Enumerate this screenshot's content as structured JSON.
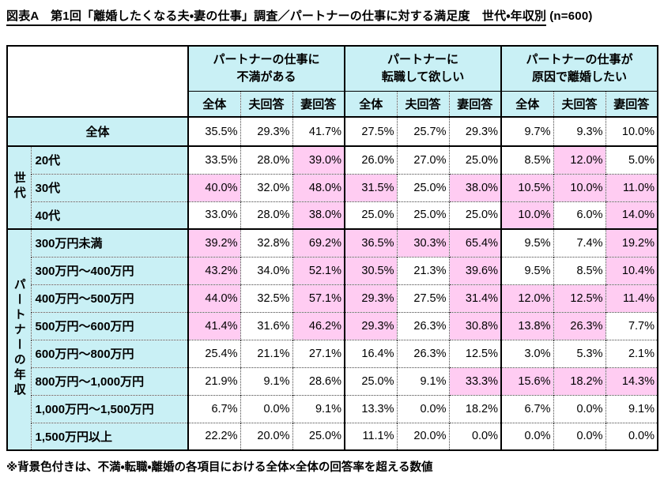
{
  "title": {
    "main": "図表A　第1回「離婚したくなる夫・妻の仕事」調査／パートナーの仕事に対する満足度　世代・年収別",
    "suffix": "(n=600)"
  },
  "colors": {
    "header_bg": "#C9F0F5",
    "highlight_bg": "#FFCCF2",
    "grid": "#000000"
  },
  "table": {
    "groups": [
      {
        "line1": "パートナーの仕事に",
        "line2": "不満がある"
      },
      {
        "line1": "パートナーに",
        "line2": "転職して欲しい"
      },
      {
        "line1": "パートナーの仕事が",
        "line2": "原因で離婚したい"
      }
    ],
    "subheaders": [
      "全体",
      "夫回答",
      "妻回答"
    ],
    "total_row": {
      "label": "全体",
      "values": [
        "35.5%",
        "29.3%",
        "41.7%",
        "27.5%",
        "25.7%",
        "29.3%",
        "9.7%",
        "9.3%",
        "10.0%"
      ],
      "highlights": [
        0,
        0,
        0,
        0,
        0,
        0,
        0,
        0,
        0
      ]
    },
    "sections": [
      {
        "header": "世代",
        "rows": [
          {
            "label": "20代",
            "values": [
              "33.5%",
              "28.0%",
              "39.0%",
              "26.0%",
              "27.0%",
              "25.0%",
              "8.5%",
              "12.0%",
              "5.0%"
            ],
            "highlights": [
              0,
              0,
              1,
              0,
              0,
              0,
              0,
              1,
              0
            ]
          },
          {
            "label": "30代",
            "values": [
              "40.0%",
              "32.0%",
              "48.0%",
              "31.5%",
              "25.0%",
              "38.0%",
              "10.5%",
              "10.0%",
              "11.0%"
            ],
            "highlights": [
              1,
              0,
              1,
              1,
              0,
              1,
              1,
              1,
              1
            ]
          },
          {
            "label": "40代",
            "values": [
              "33.0%",
              "28.0%",
              "38.0%",
              "25.0%",
              "25.0%",
              "25.0%",
              "10.0%",
              "6.0%",
              "14.0%"
            ],
            "highlights": [
              0,
              0,
              1,
              0,
              0,
              0,
              1,
              0,
              1
            ]
          }
        ]
      },
      {
        "header": "パートナーの年収",
        "rows": [
          {
            "label": "300万円未満",
            "values": [
              "39.2%",
              "32.8%",
              "69.2%",
              "36.5%",
              "30.3%",
              "65.4%",
              "9.5%",
              "7.4%",
              "19.2%"
            ],
            "highlights": [
              1,
              0,
              1,
              1,
              1,
              1,
              0,
              0,
              1
            ]
          },
          {
            "label": "300万円～400万円",
            "values": [
              "43.2%",
              "34.0%",
              "52.1%",
              "30.5%",
              "21.3%",
              "39.6%",
              "9.5%",
              "8.5%",
              "10.4%"
            ],
            "highlights": [
              1,
              0,
              1,
              1,
              0,
              1,
              0,
              0,
              1
            ]
          },
          {
            "label": "400万円～500万円",
            "values": [
              "44.0%",
              "32.5%",
              "57.1%",
              "29.3%",
              "27.5%",
              "31.4%",
              "12.0%",
              "12.5%",
              "11.4%"
            ],
            "highlights": [
              1,
              0,
              1,
              1,
              0,
              1,
              1,
              1,
              1
            ]
          },
          {
            "label": "500万円～600万円",
            "values": [
              "41.4%",
              "31.6%",
              "46.2%",
              "29.3%",
              "26.3%",
              "30.8%",
              "13.8%",
              "26.3%",
              "7.7%"
            ],
            "highlights": [
              1,
              0,
              1,
              1,
              0,
              1,
              1,
              1,
              0
            ]
          },
          {
            "label": "600万円～800万円",
            "values": [
              "25.4%",
              "21.1%",
              "27.1%",
              "16.4%",
              "26.3%",
              "12.5%",
              "3.0%",
              "5.3%",
              "2.1%"
            ],
            "highlights": [
              0,
              0,
              0,
              0,
              0,
              0,
              0,
              0,
              0
            ]
          },
          {
            "label": "800万円～1,000万円",
            "values": [
              "21.9%",
              "9.1%",
              "28.6%",
              "25.0%",
              "9.1%",
              "33.3%",
              "15.6%",
              "18.2%",
              "14.3%"
            ],
            "highlights": [
              0,
              0,
              0,
              0,
              0,
              1,
              1,
              1,
              1
            ]
          },
          {
            "label": "1,000万円～1,500万円",
            "values": [
              "6.7%",
              "0.0%",
              "9.1%",
              "13.3%",
              "0.0%",
              "18.2%",
              "6.7%",
              "0.0%",
              "9.1%"
            ],
            "highlights": [
              0,
              0,
              0,
              0,
              0,
              0,
              0,
              0,
              0
            ]
          },
          {
            "label": "1,500万円以上",
            "values": [
              "22.2%",
              "20.0%",
              "25.0%",
              "11.1%",
              "20.0%",
              "0.0%",
              "0.0%",
              "0.0%",
              "0.0%"
            ],
            "highlights": [
              0,
              0,
              0,
              0,
              0,
              0,
              0,
              0,
              0
            ]
          }
        ]
      }
    ]
  },
  "footnote": "※背景色付きは、不満・転職・離婚の各項目における全体×全体の回答率を超える数値"
}
